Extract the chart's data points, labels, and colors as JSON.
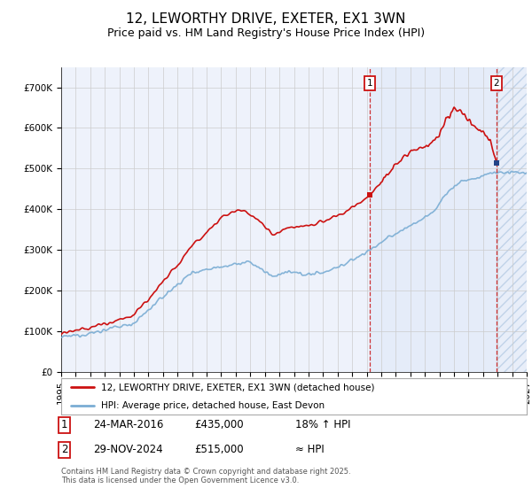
{
  "title": "12, LEWORTHY DRIVE, EXETER, EX1 3WN",
  "subtitle": "Price paid vs. HM Land Registry's House Price Index (HPI)",
  "ylim": [
    0,
    750000
  ],
  "xlim_start": 1995.0,
  "xlim_end": 2027.0,
  "background_color": "#ffffff",
  "plot_bg_color": "#eef2fb",
  "grid_color": "#cccccc",
  "hpi_color": "#7aadd4",
  "price_color": "#cc1111",
  "sale1_x": 2016.23,
  "sale1_y": 435000,
  "sale2_x": 2024.92,
  "sale2_y": 515000,
  "legend_line1": "12, LEWORTHY DRIVE, EXETER, EX1 3WN (detached house)",
  "legend_line2": "HPI: Average price, detached house, East Devon",
  "note1_date": "24-MAR-2016",
  "note1_price": "£435,000",
  "note1_pct": "18% ↑ HPI",
  "note2_date": "29-NOV-2024",
  "note2_price": "£515,000",
  "note2_pct": "≈ HPI",
  "footer": "Contains HM Land Registry data © Crown copyright and database right 2025.\nThis data is licensed under the Open Government Licence v3.0.",
  "title_fontsize": 11,
  "subtitle_fontsize": 9,
  "tick_fontsize": 7.5,
  "note_fontsize": 8.5
}
